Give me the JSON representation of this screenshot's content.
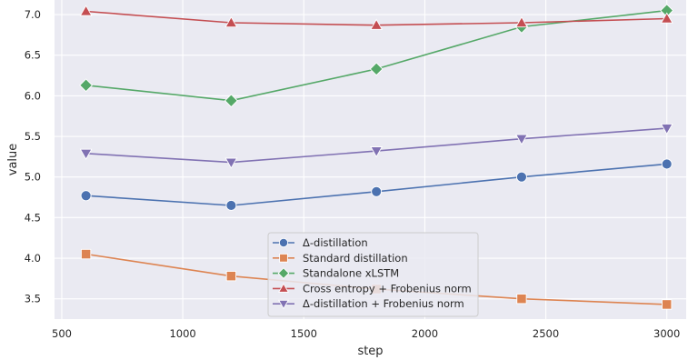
{
  "chart_data": {
    "type": "line",
    "xlabel": "step",
    "ylabel": "value",
    "xlim": [
      470,
      3080
    ],
    "ylim": [
      3.25,
      7.18
    ],
    "xticks": [
      500,
      1000,
      1500,
      2000,
      2500,
      3000
    ],
    "yticks": [
      3.5,
      4.0,
      4.5,
      5.0,
      5.5,
      6.0,
      6.5,
      7.0
    ],
    "grid": true,
    "legend_position": "lower-center",
    "series": [
      {
        "name": "Δ-distillation",
        "color": "#4c72b0",
        "marker": "circle",
        "x": [
          600,
          1200,
          1800,
          2400,
          3000
        ],
        "y": [
          4.77,
          4.65,
          4.82,
          5.0,
          5.16
        ]
      },
      {
        "name": "Standard distillation",
        "color": "#dd8452",
        "marker": "square",
        "x": [
          600,
          1200,
          1800,
          2400,
          3000
        ],
        "y": [
          4.05,
          3.78,
          3.62,
          3.5,
          3.43
        ]
      },
      {
        "name": "Standalone xLSTM",
        "color": "#55a868",
        "marker": "diamond",
        "x": [
          600,
          1200,
          1800,
          2400,
          3000
        ],
        "y": [
          6.13,
          5.94,
          6.33,
          6.85,
          7.05
        ]
      },
      {
        "name": "Cross entropy + Frobenius norm",
        "color": "#c44e52",
        "marker": "triangle-up",
        "x": [
          600,
          1200,
          1800,
          2400,
          3000
        ],
        "y": [
          7.04,
          6.9,
          6.87,
          6.9,
          6.95
        ]
      },
      {
        "name": "Δ-distillation + Frobenius norm",
        "color": "#8172b3",
        "marker": "triangle-down",
        "x": [
          600,
          1200,
          1800,
          2400,
          3000
        ],
        "y": [
          5.29,
          5.18,
          5.32,
          5.47,
          5.6
        ]
      }
    ]
  }
}
